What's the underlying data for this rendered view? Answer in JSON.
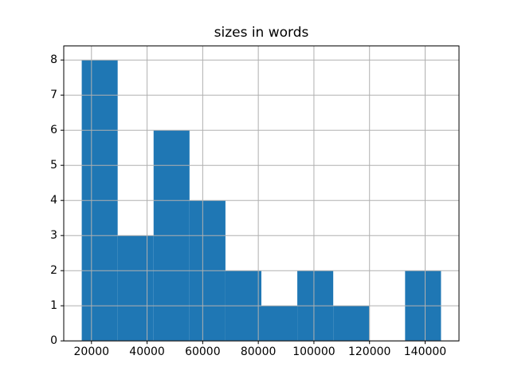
{
  "chart_data": {
    "type": "bar",
    "subtype": "histogram",
    "title": "sizes in words",
    "xlabel": "",
    "ylabel": "",
    "bin_edges": [
      16500,
      29421,
      42342,
      55263,
      68184,
      81105,
      94026,
      106947,
      119868,
      132789,
      145710
    ],
    "counts": [
      8,
      3,
      6,
      4,
      2,
      1,
      2,
      1,
      0,
      2
    ],
    "xlim": [
      10030,
      152180
    ],
    "ylim": [
      0,
      8.4
    ],
    "x_ticks": [
      20000,
      40000,
      60000,
      80000,
      100000,
      120000,
      140000
    ],
    "x_tick_labels": [
      "20000",
      "40000",
      "60000",
      "80000",
      "100000",
      "120000",
      "140000"
    ],
    "y_ticks": [
      0,
      1,
      2,
      3,
      4,
      5,
      6,
      7,
      8
    ],
    "y_tick_labels": [
      "0",
      "1",
      "2",
      "3",
      "4",
      "5",
      "6",
      "7",
      "8"
    ],
    "grid": true,
    "grid_above_bars": true,
    "legend": null,
    "colors": {
      "bar": "#1f77b4",
      "grid": "#b0b0b0",
      "spine": "#000000",
      "text": "#000000",
      "background": "#ffffff"
    }
  }
}
